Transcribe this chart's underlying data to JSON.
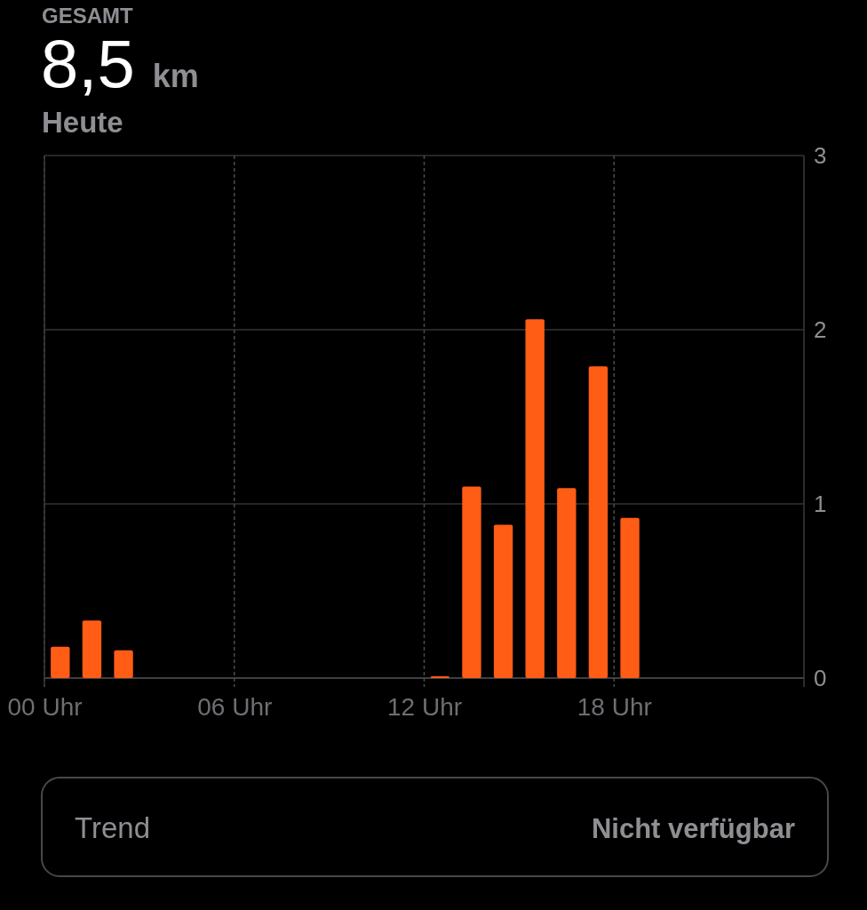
{
  "chart_data": {
    "type": "bar",
    "title": "8,5 km",
    "subtitle": "Heute",
    "annotations": [
      "GESAMT",
      "Trend",
      "Nicht verfügbar"
    ],
    "x": [
      0.5,
      1.5,
      2.5,
      12.5,
      13.5,
      14.5,
      15.5,
      16.5,
      17.5,
      18.5
    ],
    "values": [
      0.18,
      0.33,
      0.16,
      0.01,
      1.1,
      0.88,
      2.06,
      1.09,
      1.79,
      0.92
    ],
    "color": "#ff5c16",
    "xlim": [
      0,
      24
    ],
    "xticks": [
      {
        "value": 0,
        "label": "00 Uhr"
      },
      {
        "value": 6,
        "label": "06 Uhr"
      },
      {
        "value": 12,
        "label": "12 Uhr"
      },
      {
        "value": 18,
        "label": "18 Uhr"
      }
    ],
    "ylim": [
      0,
      3
    ],
    "yticks": [
      0,
      1,
      2,
      3
    ],
    "grid": true
  }
}
